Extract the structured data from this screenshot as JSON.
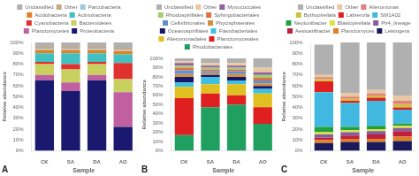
{
  "chart_data": [
    {
      "type": "bar",
      "stacked": true,
      "grid": false,
      "legend": "top",
      "xlabel": "Sample",
      "ylabel": "Relative abundance",
      "annotations": [
        "A"
      ],
      "categories": [
        "CK",
        "SA",
        "DA",
        "AO"
      ],
      "ylim": [
        0,
        100
      ],
      "yticks": [
        {
          "value": 0,
          "label": "0%"
        },
        {
          "value": 10,
          "label": "10%"
        },
        {
          "value": 20,
          "label": "20%"
        },
        {
          "value": 30,
          "label": "30%"
        },
        {
          "value": 40,
          "label": "40%"
        },
        {
          "value": 50,
          "label": "50%"
        },
        {
          "value": 60,
          "label": "60%"
        },
        {
          "value": 70,
          "label": "70%"
        },
        {
          "value": 80,
          "label": "80%"
        },
        {
          "value": 90,
          "label": "90%"
        },
        {
          "value": 100,
          "label": "100%"
        }
      ],
      "series": [
        {
          "name": "Proteobacteria",
          "color": "#191970",
          "values": [
            65,
            55,
            65,
            22
          ]
        },
        {
          "name": "Planctomycetes",
          "color": "#c060a0",
          "values": [
            5,
            8,
            5,
            32
          ]
        },
        {
          "name": "Bacteroidetes",
          "color": "#c8d060",
          "values": [
            10,
            12,
            10,
            12
          ]
        },
        {
          "name": "Cyanobacteria",
          "color": "#e03030",
          "values": [
            2,
            5,
            2,
            15
          ]
        },
        {
          "name": "Actinobacteria",
          "color": "#40c0c0",
          "values": [
            8,
            10,
            8,
            8
          ]
        },
        {
          "name": "Acidobacteria",
          "color": "#e08020",
          "values": [
            3,
            3,
            3,
            3
          ]
        },
        {
          "name": "Parcubacteria",
          "color": "#a0c8e0",
          "values": [
            1,
            1,
            1,
            1
          ]
        },
        {
          "name": "Other",
          "color": "#c8a882",
          "values": [
            2,
            2,
            2,
            2
          ]
        },
        {
          "name": "Unclassified",
          "color": "#b0b0b0",
          "values": [
            4,
            4,
            4,
            5
          ]
        }
      ]
    },
    {
      "type": "bar",
      "stacked": true,
      "grid": false,
      "legend": "top",
      "xlabel": "Sample",
      "ylabel": "Relative abundance",
      "annotations": [
        "B"
      ],
      "categories": [
        "CK",
        "SA",
        "DA",
        "AO"
      ],
      "ylim": [
        0,
        100
      ],
      "yticks": [
        {
          "value": 0,
          "label": "0%"
        },
        {
          "value": 10,
          "label": "10%"
        },
        {
          "value": 20,
          "label": "20%"
        },
        {
          "value": 30,
          "label": "30%"
        },
        {
          "value": 40,
          "label": "40%"
        },
        {
          "value": 50,
          "label": "50%"
        },
        {
          "value": 60,
          "label": "60%"
        },
        {
          "value": 70,
          "label": "70%"
        },
        {
          "value": 80,
          "label": "80%"
        },
        {
          "value": 90,
          "label": "90%"
        },
        {
          "value": 100,
          "label": "100%"
        }
      ],
      "series": [
        {
          "name": "Rhodobacterales",
          "color": "#20a060",
          "values": [
            17,
            47,
            50,
            29
          ]
        },
        {
          "name": "Planctomycetales",
          "color": "#e02020",
          "values": [
            40,
            15,
            10,
            18
          ]
        },
        {
          "name": "Alteromonadales",
          "color": "#e0c020",
          "values": [
            12,
            10,
            12,
            15
          ]
        },
        {
          "name": "Flavobacteriales",
          "color": "#40c0e0",
          "values": [
            5,
            8,
            4,
            5
          ]
        },
        {
          "name": "Oceanospirillales",
          "color": "#18186a",
          "values": [
            6,
            2,
            4,
            3
          ]
        },
        {
          "name": "Phycisphaerales",
          "color": "#d09040",
          "values": [
            3,
            2,
            3,
            3
          ]
        },
        {
          "name": "Cellvibrionales",
          "color": "#6090d0",
          "values": [
            4,
            2,
            3,
            3
          ]
        },
        {
          "name": "Sphingobacteriales",
          "color": "#e07040",
          "values": [
            3,
            2,
            2,
            3
          ]
        },
        {
          "name": "Rhodospirillales",
          "color": "#a0d070",
          "values": [
            2,
            2,
            2,
            3
          ]
        },
        {
          "name": "Myxococcales",
          "color": "#9060a0",
          "values": [
            3,
            2,
            2,
            3
          ]
        },
        {
          "name": "Other",
          "color": "#e8c8a0",
          "values": [
            2,
            3,
            3,
            5
          ]
        },
        {
          "name": "Unclassified",
          "color": "#b0b0b0",
          "values": [
            3,
            5,
            5,
            10
          ]
        }
      ]
    },
    {
      "type": "bar",
      "stacked": true,
      "grid": false,
      "legend": "top",
      "xlabel": "Sample",
      "ylabel": "Relative abundance",
      "annotations": [
        "C"
      ],
      "categories": [
        "CK",
        "SA",
        "DA",
        "AO"
      ],
      "ylim": [
        0,
        100
      ],
      "yticks": [
        {
          "value": 0,
          "label": "0%"
        },
        {
          "value": 10,
          "label": "10%"
        },
        {
          "value": 20,
          "label": "20%"
        },
        {
          "value": 30,
          "label": "30%"
        },
        {
          "value": 40,
          "label": "40%"
        },
        {
          "value": 50,
          "label": "50%"
        },
        {
          "value": 60,
          "label": "60%"
        },
        {
          "value": 70,
          "label": "70%"
        },
        {
          "value": 80,
          "label": "80%"
        },
        {
          "value": 90,
          "label": "90%"
        },
        {
          "value": 100,
          "label": "100%"
        }
      ],
      "series": [
        {
          "name": "Leisingera",
          "color": "#1a1a5a",
          "values": [
            7,
            8,
            8,
            9
          ]
        },
        {
          "name": "Planctomyces",
          "color": "#e08020",
          "values": [
            3,
            3,
            3,
            4
          ]
        },
        {
          "name": "Aestuariibacter",
          "color": "#c02040",
          "values": [
            2,
            3,
            4,
            5
          ]
        },
        {
          "name": "Pir4_lineage",
          "color": "#8060a0",
          "values": [
            3,
            3,
            3,
            3
          ]
        },
        {
          "name": "Blastopirellala",
          "color": "#e0e040",
          "values": [
            2,
            2,
            2,
            2
          ]
        },
        {
          "name": "Neptunibacter",
          "color": "#20a040",
          "values": [
            5,
            3,
            3,
            2
          ]
        },
        {
          "name": "SM1A02",
          "color": "#40b8e0",
          "values": [
            32,
            22,
            23,
            13
          ]
        },
        {
          "name": "Labrenzla",
          "color": "#e02020",
          "values": [
            10,
            2,
            3,
            2
          ]
        },
        {
          "name": "Bythopirellala",
          "color": "#d0c040",
          "values": [
            2,
            2,
            2,
            3
          ]
        },
        {
          "name": "Alteromonas",
          "color": "#e08080",
          "values": [
            2,
            2,
            2,
            3
          ]
        },
        {
          "name": "Other",
          "color": "#e8c8a0",
          "values": [
            2,
            3,
            3,
            5
          ]
        },
        {
          "name": "Unclassified",
          "color": "#b0b0b0",
          "values": [
            28,
            47,
            44,
            49
          ]
        }
      ]
    }
  ]
}
